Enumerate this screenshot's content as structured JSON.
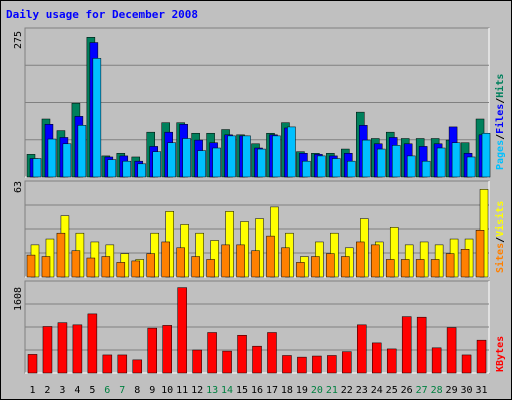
{
  "title": "Daily usage for December 2008",
  "colors": {
    "background": "#c0c0c0",
    "hits": "#00805c",
    "files": "#0000ff",
    "pages": "#00c0ff",
    "visits": "#ffff00",
    "sites": "#ff8000",
    "kbytes": "#ff0000",
    "title": "#0000ff",
    "weekend_day": "#008040"
  },
  "chart_data": [
    {
      "type": "bar",
      "panel": "hits-files-pages",
      "ymax_label": "275",
      "ylim": [
        0,
        275
      ],
      "legend": [
        "Pages",
        "/",
        "Files",
        "/",
        "Hits"
      ],
      "categories": [
        "1",
        "2",
        "3",
        "4",
        "5",
        "6",
        "7",
        "8",
        "9",
        "10",
        "11",
        "12",
        "13",
        "14",
        "15",
        "16",
        "17",
        "18",
        "19",
        "20",
        "21",
        "22",
        "23",
        "24",
        "25",
        "26",
        "27",
        "28",
        "29",
        "30",
        "31"
      ],
      "series": [
        {
          "name": "Hits",
          "values": [
            43,
            110,
            88,
            140,
            265,
            40,
            45,
            38,
            85,
            103,
            103,
            83,
            83,
            90,
            80,
            63,
            83,
            103,
            48,
            45,
            45,
            53,
            123,
            73,
            85,
            73,
            73,
            73,
            70,
            65,
            110
          ]
        },
        {
          "name": "Files",
          "values": [
            35,
            100,
            75,
            115,
            255,
            38,
            40,
            30,
            58,
            85,
            100,
            70,
            65,
            80,
            78,
            55,
            80,
            93,
            45,
            43,
            40,
            45,
            98,
            63,
            75,
            63,
            58,
            63,
            95,
            45,
            80
          ]
        },
        {
          "name": "Pages",
          "values": [
            35,
            72,
            63,
            98,
            225,
            33,
            30,
            25,
            48,
            65,
            73,
            50,
            55,
            78,
            78,
            53,
            78,
            95,
            30,
            40,
            35,
            30,
            70,
            53,
            60,
            40,
            30,
            55,
            65,
            38,
            83
          ]
        }
      ]
    },
    {
      "type": "bar",
      "panel": "visits-sites",
      "ymax_label": "63",
      "ylim": [
        0,
        63
      ],
      "legend": [
        "Sites",
        "/",
        "Visits"
      ],
      "categories": [
        "1",
        "2",
        "3",
        "4",
        "5",
        "6",
        "7",
        "8",
        "9",
        "10",
        "11",
        "12",
        "13",
        "14",
        "15",
        "16",
        "17",
        "18",
        "19",
        "20",
        "21",
        "22",
        "23",
        "24",
        "25",
        "26",
        "27",
        "28",
        "29",
        "30",
        "31"
      ],
      "series": [
        {
          "name": "Visits",
          "values": [
            22,
            26,
            42,
            30,
            24,
            22,
            16,
            12,
            30,
            45,
            36,
            30,
            25,
            45,
            38,
            40,
            48,
            30,
            14,
            24,
            30,
            20,
            40,
            24,
            34,
            22,
            24,
            22,
            26,
            26,
            60
          ]
        },
        {
          "name": "Sites",
          "values": [
            15,
            14,
            30,
            18,
            13,
            14,
            10,
            11,
            16,
            24,
            20,
            14,
            12,
            22,
            22,
            18,
            28,
            20,
            10,
            14,
            16,
            14,
            24,
            22,
            12,
            12,
            12,
            12,
            16,
            19,
            32
          ]
        }
      ]
    },
    {
      "type": "bar",
      "panel": "kbytes",
      "ymax_label": "1608",
      "ylim": [
        0,
        1608
      ],
      "legend": [
        "KBytes"
      ],
      "categories": [
        "1",
        "2",
        "3",
        "4",
        "5",
        "6",
        "7",
        "8",
        "9",
        "10",
        "11",
        "12",
        "13",
        "14",
        "15",
        "16",
        "17",
        "18",
        "19",
        "20",
        "21",
        "22",
        "23",
        "24",
        "25",
        "26",
        "27",
        "28",
        "29",
        "30",
        "31"
      ],
      "series": [
        {
          "name": "KBytes",
          "values": [
            340,
            850,
            920,
            880,
            1080,
            330,
            330,
            240,
            820,
            870,
            1560,
            420,
            740,
            400,
            690,
            490,
            740,
            320,
            290,
            310,
            320,
            390,
            880,
            550,
            440,
            1030,
            1020,
            460,
            830,
            330,
            600
          ]
        }
      ]
    }
  ],
  "weekend_days": [
    "6",
    "7",
    "13",
    "14",
    "20",
    "21",
    "27",
    "28"
  ]
}
